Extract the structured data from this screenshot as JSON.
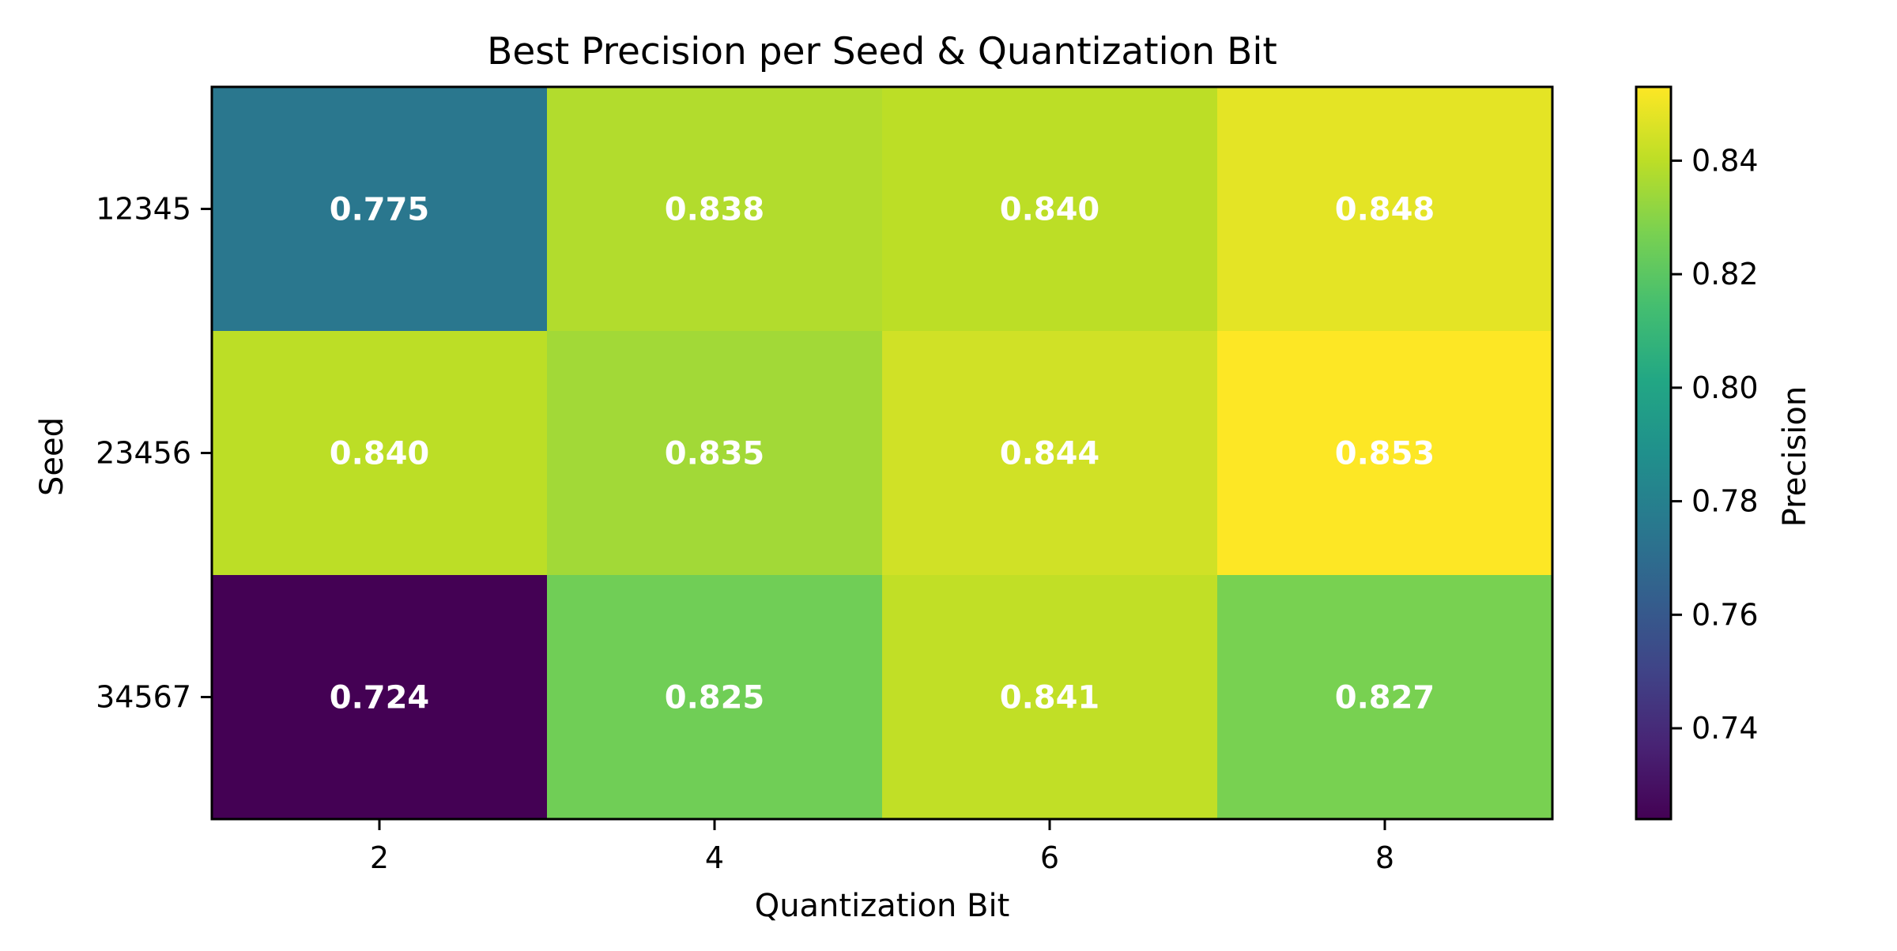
{
  "chart_data": {
    "type": "heatmap",
    "title": "Best Precision per Seed & Quantization Bit",
    "xlabel": "Quantization Bit",
    "ylabel": "Seed",
    "x_categories": [
      "2",
      "4",
      "6",
      "8"
    ],
    "y_categories": [
      "12345",
      "23456",
      "34567"
    ],
    "values": [
      [
        0.775,
        0.838,
        0.84,
        0.848
      ],
      [
        0.84,
        0.835,
        0.844,
        0.853
      ],
      [
        0.724,
        0.825,
        0.841,
        0.827
      ]
    ],
    "value_labels": [
      [
        "0.775",
        "0.838",
        "0.840",
        "0.848"
      ],
      [
        "0.840",
        "0.835",
        "0.844",
        "0.853"
      ],
      [
        "0.724",
        "0.825",
        "0.841",
        "0.827"
      ]
    ],
    "colormap": "viridis",
    "color_range": [
      0.724,
      0.853
    ],
    "colorbar": {
      "label": "Precision",
      "ticks": [
        0.74,
        0.76,
        0.78,
        0.8,
        0.82,
        0.84
      ],
      "tick_labels": [
        "0.74",
        "0.76",
        "0.78",
        "0.80",
        "0.82",
        "0.84"
      ]
    },
    "colors": {
      "cell_text": "#ffffff",
      "frame": "#000000"
    },
    "grid": false
  }
}
